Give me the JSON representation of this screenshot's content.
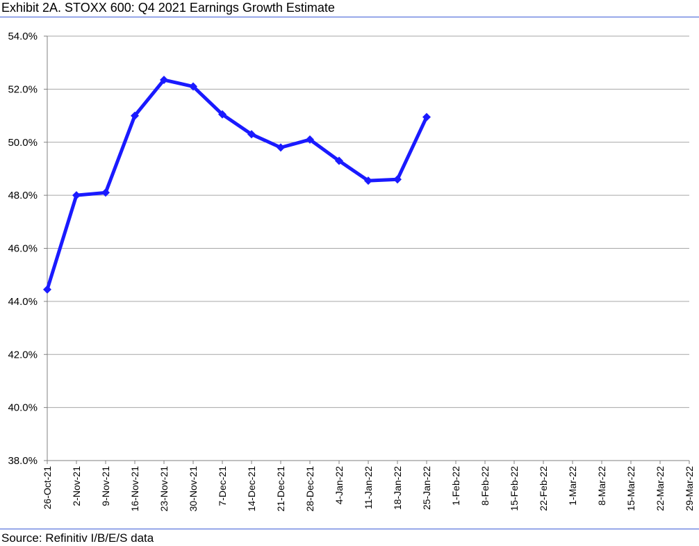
{
  "title": "Exhibit 2A.  STOXX 600: Q4 2021 Earnings Growth Estimate",
  "source": "Source: Refinitiv I/B/E/S data",
  "colors": {
    "series": "#1a1aff",
    "grid": "#a6a6a6",
    "rule": "#3b5bd6"
  },
  "chart_data": {
    "type": "line",
    "title": "Exhibit 2A.  STOXX 600: Q4 2021 Earnings Growth Estimate",
    "xlabel": "",
    "ylabel": "",
    "ylim": [
      38.0,
      54.0
    ],
    "y_ticks": [
      "38.0%",
      "40.0%",
      "42.0%",
      "44.0%",
      "46.0%",
      "48.0%",
      "50.0%",
      "52.0%",
      "54.0%"
    ],
    "categories": [
      "26-Oct-21",
      "2-Nov-21",
      "9-Nov-21",
      "16-Nov-21",
      "23-Nov-21",
      "30-Nov-21",
      "7-Dec-21",
      "14-Dec-21",
      "21-Dec-21",
      "28-Dec-21",
      "4-Jan-22",
      "11-Jan-22",
      "18-Jan-22",
      "25-Jan-22",
      "1-Feb-22",
      "8-Feb-22",
      "15-Feb-22",
      "22-Feb-22",
      "1-Mar-22",
      "8-Mar-22",
      "15-Mar-22",
      "22-Mar-22",
      "29-Mar-22"
    ],
    "values": [
      44.45,
      48.0,
      48.1,
      51.0,
      52.35,
      52.1,
      51.05,
      50.3,
      49.8,
      50.1,
      49.3,
      48.55,
      48.6,
      50.95,
      null,
      null,
      null,
      null,
      null,
      null,
      null,
      null,
      null
    ],
    "grid": true,
    "legend": "none"
  }
}
